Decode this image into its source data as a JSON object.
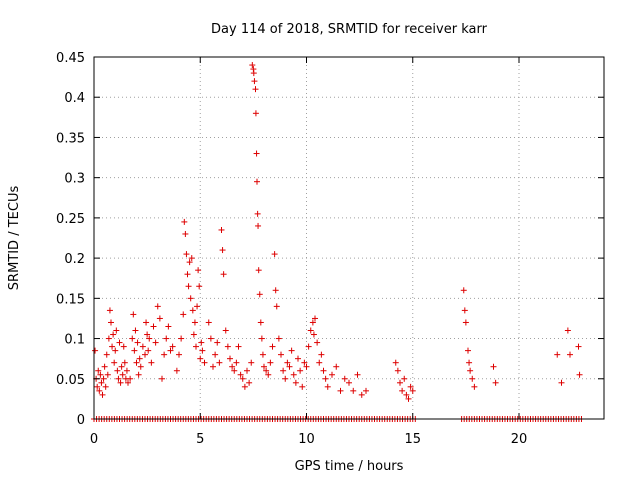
{
  "chart_data": {
    "type": "scatter",
    "title": "Day 114 of 2018, SRMTID for receiver karr",
    "xlabel": "GPS time / hours",
    "ylabel": "SRMTID / TECUs",
    "xlim": [
      0,
      24
    ],
    "ylim": [
      0,
      0.45
    ],
    "xticks": [
      0,
      5,
      10,
      15,
      20
    ],
    "xtick_labels": [
      "0",
      "5",
      "10",
      "15",
      "20"
    ],
    "yticks": [
      0,
      0.05,
      0.1,
      0.15,
      0.2,
      0.25,
      0.3,
      0.35,
      0.4,
      0.45
    ],
    "ytick_labels": [
      "0",
      "0.05",
      "0.1",
      "0.15",
      "0.2",
      "0.25",
      "0.3",
      "0.35",
      "0.4",
      "0.45"
    ],
    "grid": true,
    "marker": "+",
    "marker_color": "#dd0000",
    "series": [
      {
        "name": "SRMTID",
        "points": [
          [
            0.05,
            0.085
          ],
          [
            0.1,
            0.05
          ],
          [
            0.15,
            0.04
          ],
          [
            0.2,
            0.06
          ],
          [
            0.25,
            0.035
          ],
          [
            0.3,
            0.055
          ],
          [
            0.35,
            0.045
          ],
          [
            0.4,
            0.03
          ],
          [
            0.45,
            0.05
          ],
          [
            0.5,
            0.065
          ],
          [
            0.55,
            0.04
          ],
          [
            0.6,
            0.08
          ],
          [
            0.65,
            0.055
          ],
          [
            0.7,
            0.1
          ],
          [
            0.75,
            0.135
          ],
          [
            0.8,
            0.12
          ],
          [
            0.85,
            0.09
          ],
          [
            0.9,
            0.105
          ],
          [
            0.95,
            0.07
          ],
          [
            1.0,
            0.085
          ],
          [
            1.05,
            0.11
          ],
          [
            1.1,
            0.06
          ],
          [
            1.15,
            0.05
          ],
          [
            1.2,
            0.095
          ],
          [
            1.25,
            0.045
          ],
          [
            1.3,
            0.065
          ],
          [
            1.35,
            0.055
          ],
          [
            1.4,
            0.09
          ],
          [
            1.45,
            0.07
          ],
          [
            1.5,
            0.05
          ],
          [
            1.55,
            0.06
          ],
          [
            1.6,
            0.045
          ],
          [
            1.7,
            0.05
          ],
          [
            1.8,
            0.1
          ],
          [
            1.85,
            0.13
          ],
          [
            1.9,
            0.085
          ],
          [
            1.95,
            0.11
          ],
          [
            2.0,
            0.07
          ],
          [
            2.05,
            0.095
          ],
          [
            2.1,
            0.055
          ],
          [
            2.15,
            0.075
          ],
          [
            2.2,
            0.065
          ],
          [
            2.3,
            0.09
          ],
          [
            2.4,
            0.08
          ],
          [
            2.45,
            0.12
          ],
          [
            2.5,
            0.105
          ],
          [
            2.55,
            0.085
          ],
          [
            2.6,
            0.1
          ],
          [
            2.7,
            0.07
          ],
          [
            2.8,
            0.115
          ],
          [
            2.9,
            0.095
          ],
          [
            3.0,
            0.14
          ],
          [
            3.1,
            0.125
          ],
          [
            3.2,
            0.05
          ],
          [
            3.3,
            0.08
          ],
          [
            3.4,
            0.1
          ],
          [
            3.5,
            0.115
          ],
          [
            3.6,
            0.085
          ],
          [
            3.7,
            0.09
          ],
          [
            3.9,
            0.06
          ],
          [
            4.0,
            0.08
          ],
          [
            4.1,
            0.1
          ],
          [
            4.2,
            0.13
          ],
          [
            4.25,
            0.245
          ],
          [
            4.3,
            0.23
          ],
          [
            4.35,
            0.205
          ],
          [
            4.4,
            0.18
          ],
          [
            4.45,
            0.165
          ],
          [
            4.5,
            0.195
          ],
          [
            4.55,
            0.15
          ],
          [
            4.6,
            0.2
          ],
          [
            4.65,
            0.135
          ],
          [
            4.7,
            0.105
          ],
          [
            4.75,
            0.12
          ],
          [
            4.8,
            0.09
          ],
          [
            4.85,
            0.14
          ],
          [
            4.9,
            0.185
          ],
          [
            4.95,
            0.165
          ],
          [
            5.0,
            0.075
          ],
          [
            5.05,
            0.095
          ],
          [
            5.1,
            0.085
          ],
          [
            5.2,
            0.07
          ],
          [
            5.4,
            0.12
          ],
          [
            5.5,
            0.1
          ],
          [
            5.6,
            0.065
          ],
          [
            5.7,
            0.08
          ],
          [
            5.8,
            0.095
          ],
          [
            5.9,
            0.07
          ],
          [
            6.0,
            0.235
          ],
          [
            6.05,
            0.21
          ],
          [
            6.1,
            0.18
          ],
          [
            6.2,
            0.11
          ],
          [
            6.3,
            0.09
          ],
          [
            6.4,
            0.075
          ],
          [
            6.5,
            0.065
          ],
          [
            6.6,
            0.06
          ],
          [
            6.7,
            0.07
          ],
          [
            6.8,
            0.09
          ],
          [
            6.9,
            0.055
          ],
          [
            7.0,
            0.05
          ],
          [
            7.1,
            0.04
          ],
          [
            7.2,
            0.06
          ],
          [
            7.3,
            0.045
          ],
          [
            7.4,
            0.07
          ],
          [
            7.45,
            0.44
          ],
          [
            7.5,
            0.435
          ],
          [
            7.52,
            0.43
          ],
          [
            7.55,
            0.42
          ],
          [
            7.6,
            0.41
          ],
          [
            7.62,
            0.38
          ],
          [
            7.65,
            0.33
          ],
          [
            7.67,
            0.295
          ],
          [
            7.7,
            0.255
          ],
          [
            7.72,
            0.24
          ],
          [
            7.75,
            0.185
          ],
          [
            7.8,
            0.155
          ],
          [
            7.85,
            0.12
          ],
          [
            7.9,
            0.1
          ],
          [
            7.95,
            0.08
          ],
          [
            8.0,
            0.065
          ],
          [
            8.1,
            0.06
          ],
          [
            8.2,
            0.055
          ],
          [
            8.3,
            0.07
          ],
          [
            8.4,
            0.09
          ],
          [
            8.5,
            0.205
          ],
          [
            8.55,
            0.16
          ],
          [
            8.6,
            0.14
          ],
          [
            8.7,
            0.1
          ],
          [
            8.8,
            0.08
          ],
          [
            8.9,
            0.06
          ],
          [
            9.0,
            0.05
          ],
          [
            9.1,
            0.07
          ],
          [
            9.2,
            0.065
          ],
          [
            9.3,
            0.085
          ],
          [
            9.4,
            0.055
          ],
          [
            9.5,
            0.045
          ],
          [
            9.6,
            0.075
          ],
          [
            9.7,
            0.06
          ],
          [
            9.8,
            0.04
          ],
          [
            9.9,
            0.07
          ],
          [
            10.0,
            0.065
          ],
          [
            10.1,
            0.09
          ],
          [
            10.2,
            0.11
          ],
          [
            10.3,
            0.12
          ],
          [
            10.35,
            0.105
          ],
          [
            10.4,
            0.125
          ],
          [
            10.5,
            0.095
          ],
          [
            10.6,
            0.07
          ],
          [
            10.7,
            0.08
          ],
          [
            10.8,
            0.06
          ],
          [
            10.9,
            0.05
          ],
          [
            11.0,
            0.04
          ],
          [
            11.2,
            0.055
          ],
          [
            11.4,
            0.065
          ],
          [
            11.6,
            0.035
          ],
          [
            11.8,
            0.05
          ],
          [
            12.0,
            0.045
          ],
          [
            12.2,
            0.035
          ],
          [
            12.4,
            0.055
          ],
          [
            12.6,
            0.03
          ],
          [
            12.8,
            0.035
          ],
          [
            14.2,
            0.07
          ],
          [
            14.3,
            0.06
          ],
          [
            14.4,
            0.045
          ],
          [
            14.5,
            0.035
          ],
          [
            14.6,
            0.05
          ],
          [
            14.7,
            0.03
          ],
          [
            14.8,
            0.025
          ],
          [
            14.9,
            0.04
          ],
          [
            15.0,
            0.035
          ],
          [
            17.4,
            0.16
          ],
          [
            17.45,
            0.135
          ],
          [
            17.5,
            0.12
          ],
          [
            17.6,
            0.085
          ],
          [
            17.65,
            0.07
          ],
          [
            17.7,
            0.06
          ],
          [
            17.8,
            0.05
          ],
          [
            17.9,
            0.04
          ],
          [
            18.8,
            0.065
          ],
          [
            18.9,
            0.045
          ],
          [
            21.8,
            0.08
          ],
          [
            22.0,
            0.045
          ],
          [
            22.3,
            0.11
          ],
          [
            22.4,
            0.08
          ],
          [
            22.8,
            0.09
          ],
          [
            22.85,
            0.055
          ]
        ],
        "zero_ranges": [
          [
            0,
            15.2
          ],
          [
            17.3,
            23
          ]
        ]
      }
    ]
  }
}
